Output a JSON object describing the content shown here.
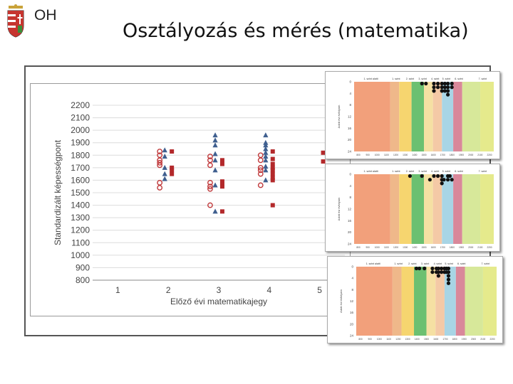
{
  "header": {
    "logo_text": "OH",
    "title": "Osztályozás és mérés (matematika)"
  },
  "colors": {
    "circle": "#c0393b",
    "square": "#b3292b",
    "triangle": "#3f5f8f",
    "grid": "#dcdcdc",
    "bands": [
      "#f2a07b",
      "#efb88a",
      "#f6d56f",
      "#6cc071",
      "#f5e0a3",
      "#f4c9a6",
      "#a8d5e5",
      "#d9889a",
      "#d7e89a",
      "#e5ea8c"
    ]
  },
  "chart_data": [
    {
      "type": "scatter",
      "title": "",
      "xlabel": "Előző évi matematikajegy",
      "ylabel": "Standardizált képességpont",
      "x_ticks": [
        "1",
        "2",
        "3",
        "4",
        "5"
      ],
      "y_ticks": [
        "800",
        "900",
        "1000",
        "1100",
        "1200",
        "1300",
        "1400",
        "1500",
        "1600",
        "1700",
        "1800",
        "1900",
        "2000",
        "2100",
        "2200"
      ],
      "xlim": [
        0.5,
        5.5
      ],
      "ylim": [
        800,
        2200
      ],
      "grid": true,
      "series": [
        {
          "marker": "circle-open",
          "points": [
            [
              1.83,
              1830
            ],
            [
              1.83,
              1800
            ],
            [
              1.83,
              1760
            ],
            [
              1.83,
              1740
            ],
            [
              1.83,
              1720
            ],
            [
              1.83,
              1580
            ],
            [
              1.83,
              1540
            ],
            [
              2.83,
              1790
            ],
            [
              2.83,
              1760
            ],
            [
              2.83,
              1720
            ],
            [
              2.83,
              1580
            ],
            [
              2.83,
              1550
            ],
            [
              2.83,
              1530
            ],
            [
              2.83,
              1400
            ],
            [
              3.83,
              1800
            ],
            [
              3.83,
              1760
            ],
            [
              3.83,
              1700
            ],
            [
              3.83,
              1680
            ],
            [
              3.83,
              1650
            ],
            [
              3.83,
              1560
            ]
          ]
        },
        {
          "marker": "triangle",
          "points": [
            [
              1.93,
              1840
            ],
            [
              1.93,
              1790
            ],
            [
              1.93,
              1700
            ],
            [
              1.93,
              1650
            ],
            [
              1.93,
              1610
            ],
            [
              2.93,
              1960
            ],
            [
              2.93,
              1920
            ],
            [
              2.93,
              1880
            ],
            [
              2.93,
              1810
            ],
            [
              2.93,
              1760
            ],
            [
              2.93,
              1680
            ],
            [
              2.93,
              1560
            ],
            [
              2.93,
              1350
            ],
            [
              3.93,
              1960
            ],
            [
              3.93,
              1900
            ],
            [
              3.93,
              1880
            ],
            [
              3.93,
              1850
            ],
            [
              3.93,
              1820
            ],
            [
              3.93,
              1790
            ],
            [
              3.93,
              1760
            ],
            [
              3.93,
              1710
            ],
            [
              3.93,
              1680
            ],
            [
              3.93,
              1600
            ]
          ]
        },
        {
          "marker": "square",
          "points": [
            [
              2.07,
              1830
            ],
            [
              2.07,
              1700
            ],
            [
              2.07,
              1680
            ],
            [
              2.07,
              1650
            ],
            [
              3.07,
              1760
            ],
            [
              3.07,
              1730
            ],
            [
              3.07,
              1590
            ],
            [
              3.07,
              1570
            ],
            [
              3.07,
              1550
            ],
            [
              3.07,
              1350
            ],
            [
              4.07,
              1830
            ],
            [
              4.07,
              1770
            ],
            [
              4.07,
              1730
            ],
            [
              4.07,
              1700
            ],
            [
              4.07,
              1680
            ],
            [
              4.07,
              1650
            ],
            [
              4.07,
              1620
            ],
            [
              4.07,
              1600
            ],
            [
              4.07,
              1400
            ],
            [
              5.07,
              1820
            ],
            [
              5.07,
              1750
            ]
          ]
        }
      ]
    },
    {
      "type": "scatter",
      "title": "",
      "ylabel": "Adott évi évfolyam",
      "band_labels": [
        "1. szint alatti",
        "1. szint",
        "2. szint",
        "3. szint",
        "4. szint",
        "5. szint",
        "6. szint",
        "7. szint"
      ],
      "y_ticks": [
        "0",
        "4",
        "8",
        "12",
        "16",
        "20",
        "24"
      ],
      "x_ticks": [
        "800",
        "900",
        "1000",
        "1100",
        "1200",
        "1300",
        "1400",
        "1500",
        "1600",
        "1700",
        "1800",
        "1900",
        "2000",
        "2100",
        "2200"
      ],
      "points": [
        [
          1480,
          0
        ],
        [
          1520,
          0
        ],
        [
          1600,
          0
        ],
        [
          1600,
          1
        ],
        [
          1600,
          2
        ],
        [
          1640,
          0
        ],
        [
          1640,
          1
        ],
        [
          1680,
          0
        ],
        [
          1680,
          1
        ],
        [
          1680,
          2
        ],
        [
          1710,
          0
        ],
        [
          1710,
          1
        ],
        [
          1710,
          2
        ],
        [
          1740,
          0
        ],
        [
          1740,
          1
        ],
        [
          1740,
          2
        ],
        [
          1740,
          3
        ],
        [
          1780,
          0
        ],
        [
          1780,
          1
        ]
      ]
    },
    {
      "type": "scatter",
      "title": "",
      "ylabel": "Adott évi évfolyam",
      "band_labels": [
        "1. szint alatti",
        "1. szint",
        "2. szint",
        "3. szint",
        "4. szint",
        "5. szint",
        "6. szint",
        "7. szint"
      ],
      "y_ticks": [
        "0",
        "4",
        "8",
        "12",
        "16",
        "20",
        "24"
      ],
      "x_ticks": [
        "800",
        "900",
        "1000",
        "1100",
        "1200",
        "1300",
        "1400",
        "1500",
        "1600",
        "1700",
        "1800",
        "1900",
        "2000",
        "2100",
        "2200"
      ],
      "points": [
        [
          1360,
          0
        ],
        [
          1480,
          0
        ],
        [
          1560,
          1
        ],
        [
          1600,
          0
        ],
        [
          1640,
          0
        ],
        [
          1680,
          0
        ],
        [
          1680,
          1
        ],
        [
          1680,
          2
        ],
        [
          1700,
          1
        ],
        [
          1740,
          0
        ],
        [
          1740,
          1
        ],
        [
          1760,
          0
        ],
        [
          1780,
          1
        ]
      ]
    },
    {
      "type": "scatter",
      "title": "",
      "ylabel": "Adott évi évfolyam",
      "band_labels": [
        "1. szint alatti",
        "1. szint",
        "2. szint",
        "3. szint",
        "4. szint",
        "5. szint",
        "6. szint",
        "7. szint"
      ],
      "y_ticks": [
        "0",
        "4",
        "8",
        "12",
        "16",
        "20",
        "24"
      ],
      "x_ticks": [
        "800",
        "900",
        "1000",
        "1100",
        "1200",
        "1300",
        "1400",
        "1500",
        "1600",
        "1700",
        "1800",
        "1900",
        "2000",
        "2100",
        "2200"
      ],
      "points": [
        [
          1400,
          0
        ],
        [
          1430,
          0
        ],
        [
          1480,
          0
        ],
        [
          1560,
          0
        ],
        [
          1560,
          1
        ],
        [
          1600,
          0
        ],
        [
          1600,
          1
        ],
        [
          1620,
          0
        ],
        [
          1620,
          1
        ],
        [
          1620,
          2
        ],
        [
          1650,
          0
        ],
        [
          1650,
          1
        ],
        [
          1680,
          0
        ],
        [
          1680,
          1
        ],
        [
          1700,
          0
        ],
        [
          1700,
          1
        ],
        [
          1720,
          0
        ],
        [
          1720,
          1
        ],
        [
          1720,
          2
        ],
        [
          1720,
          3
        ],
        [
          1720,
          4
        ]
      ]
    }
  ]
}
